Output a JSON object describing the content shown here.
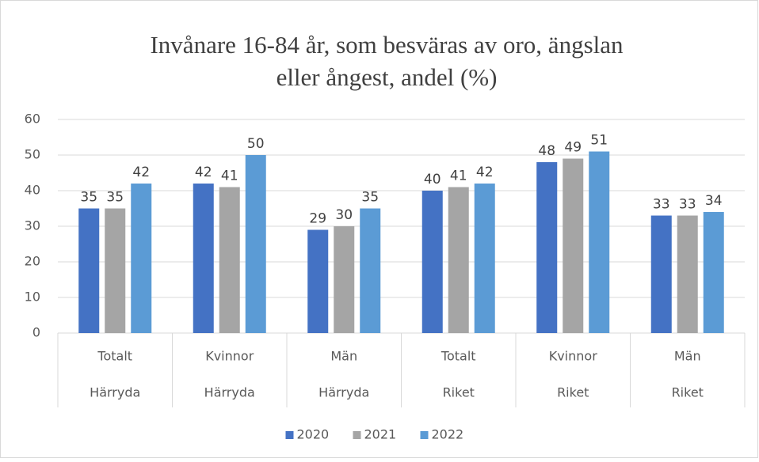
{
  "chart_data": {
    "type": "bar",
    "title": [
      "Invånare 16-84 år, som besväras av oro, ängslan",
      "eller ångest, andel (%)"
    ],
    "categories": [
      "Totalt",
      "Kvinnor",
      "Män",
      "Totalt",
      "Kvinnor",
      "Män"
    ],
    "category_groups": [
      "Härryda",
      "Härryda",
      "Härryda",
      "Riket",
      "Riket",
      "Riket"
    ],
    "series": [
      {
        "name": "2020",
        "color": "#4472c4",
        "values": [
          35,
          42,
          29,
          40,
          48,
          33
        ]
      },
      {
        "name": "2021",
        "color": "#a5a5a5",
        "values": [
          35,
          41,
          30,
          41,
          49,
          33
        ]
      },
      {
        "name": "2022",
        "color": "#5b9bd5",
        "values": [
          42,
          50,
          35,
          42,
          51,
          34
        ]
      }
    ],
    "ylim": [
      0,
      60
    ],
    "yticks": [
      0,
      10,
      20,
      30,
      40,
      50,
      60
    ],
    "grid": true,
    "legend": "bottom"
  }
}
